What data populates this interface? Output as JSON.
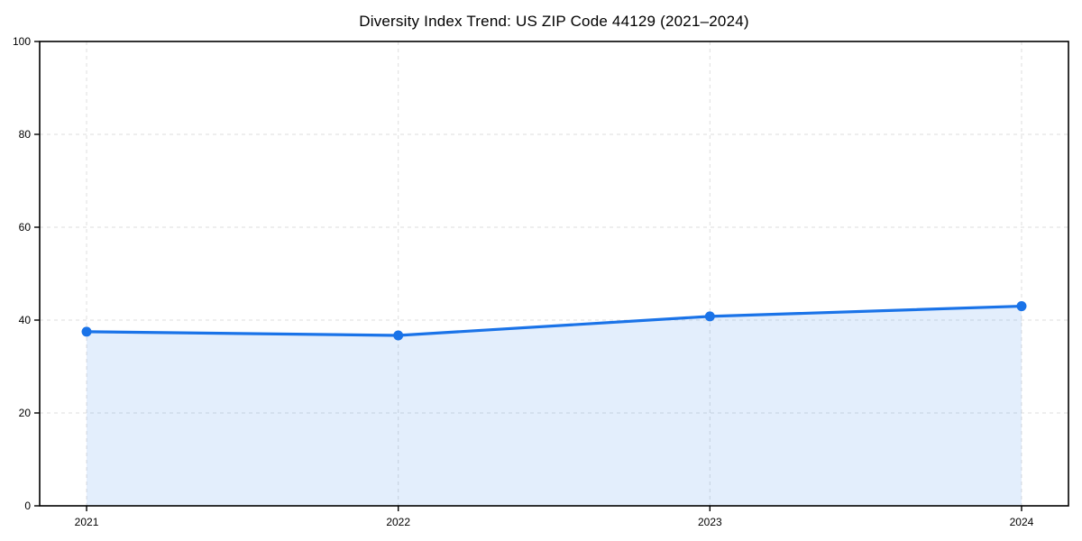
{
  "title": "Diversity Index Trend: US ZIP Code 44129 (2021–2024)",
  "chart_data": {
    "type": "area",
    "title": "Diversity Index Trend: US ZIP Code 44129 (2021–2024)",
    "categories": [
      "2021",
      "2022",
      "2023",
      "2024"
    ],
    "series": [
      {
        "name": "Diversity Index",
        "values": [
          37.5,
          36.7,
          40.8,
          43.0
        ]
      }
    ],
    "xlabel": "",
    "ylabel": "",
    "ylim": [
      0,
      100
    ],
    "y_ticks": [
      0,
      20,
      40,
      60,
      80,
      100
    ],
    "grid": true,
    "grid_style": "dashed",
    "legend": false,
    "colors": {
      "line": "#1a73e8",
      "marker": "#1a73e8",
      "fill": "rgba(26,115,232,0.12)",
      "gridline": "#dedede",
      "axis": "#000000",
      "background": "#ffffff"
    }
  }
}
